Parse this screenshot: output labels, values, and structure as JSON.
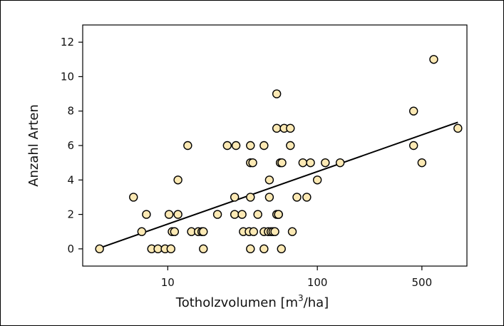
{
  "chart_data": {
    "type": "scatter",
    "title": "",
    "xlabel": "Totholzvolumen [m³/ha]",
    "xlabel_parts": {
      "prefix": "Totholzvolumen [m",
      "sup": "3",
      "suffix": "/ha]"
    },
    "ylabel": "Anzahl Arten",
    "xscale": "log",
    "xlim": [
      2.7,
      1000
    ],
    "ylim": [
      -1,
      13
    ],
    "xticks": [
      10,
      100,
      500
    ],
    "xtick_labels": [
      "10",
      "100",
      "500"
    ],
    "yticks": [
      0,
      2,
      4,
      6,
      8,
      10,
      12
    ],
    "ytick_labels": [
      "0",
      "2",
      "4",
      "6",
      "8",
      "10",
      "12"
    ],
    "grid": false,
    "legend": "none",
    "marker_fill": "#fce9b4",
    "marker_stroke": "#000000",
    "points": [
      {
        "x": 3.5,
        "y": 0
      },
      {
        "x": 5.9,
        "y": 3
      },
      {
        "x": 6.7,
        "y": 1
      },
      {
        "x": 7.2,
        "y": 2
      },
      {
        "x": 7.8,
        "y": 0
      },
      {
        "x": 8.6,
        "y": 0
      },
      {
        "x": 9.6,
        "y": 0
      },
      {
        "x": 10.2,
        "y": 2
      },
      {
        "x": 10.5,
        "y": 0
      },
      {
        "x": 10.7,
        "y": 1
      },
      {
        "x": 11.1,
        "y": 1
      },
      {
        "x": 11.7,
        "y": 2
      },
      {
        "x": 11.7,
        "y": 4
      },
      {
        "x": 13.6,
        "y": 6
      },
      {
        "x": 14.4,
        "y": 1
      },
      {
        "x": 16.0,
        "y": 1
      },
      {
        "x": 16.9,
        "y": 1
      },
      {
        "x": 17.3,
        "y": 0
      },
      {
        "x": 17.3,
        "y": 1
      },
      {
        "x": 21.5,
        "y": 2
      },
      {
        "x": 25.0,
        "y": 6
      },
      {
        "x": 28.0,
        "y": 2
      },
      {
        "x": 28.0,
        "y": 3
      },
      {
        "x": 28.6,
        "y": 6
      },
      {
        "x": 31.4,
        "y": 2
      },
      {
        "x": 32.0,
        "y": 1
      },
      {
        "x": 35.0,
        "y": 1
      },
      {
        "x": 35.7,
        "y": 6
      },
      {
        "x": 35.7,
        "y": 5
      },
      {
        "x": 35.7,
        "y": 3
      },
      {
        "x": 35.7,
        "y": 0
      },
      {
        "x": 37.0,
        "y": 5
      },
      {
        "x": 37.5,
        "y": 1
      },
      {
        "x": 40.0,
        "y": 2
      },
      {
        "x": 44.0,
        "y": 6
      },
      {
        "x": 44.0,
        "y": 1
      },
      {
        "x": 44.0,
        "y": 0
      },
      {
        "x": 47.0,
        "y": 1
      },
      {
        "x": 47.8,
        "y": 3
      },
      {
        "x": 47.8,
        "y": 4
      },
      {
        "x": 49.0,
        "y": 1
      },
      {
        "x": 50.5,
        "y": 1
      },
      {
        "x": 52.0,
        "y": 1
      },
      {
        "x": 53.5,
        "y": 2
      },
      {
        "x": 53.5,
        "y": 9
      },
      {
        "x": 53.5,
        "y": 7
      },
      {
        "x": 55.0,
        "y": 2
      },
      {
        "x": 55.0,
        "y": 2
      },
      {
        "x": 56.5,
        "y": 5
      },
      {
        "x": 57.5,
        "y": 0
      },
      {
        "x": 58.0,
        "y": 5
      },
      {
        "x": 60.0,
        "y": 7
      },
      {
        "x": 66.0,
        "y": 7
      },
      {
        "x": 66.0,
        "y": 6
      },
      {
        "x": 68.0,
        "y": 1
      },
      {
        "x": 73.0,
        "y": 3
      },
      {
        "x": 80.0,
        "y": 5
      },
      {
        "x": 85.0,
        "y": 3
      },
      {
        "x": 90.0,
        "y": 5
      },
      {
        "x": 100.0,
        "y": 4
      },
      {
        "x": 113.0,
        "y": 5
      },
      {
        "x": 142.0,
        "y": 5
      },
      {
        "x": 440.0,
        "y": 8
      },
      {
        "x": 440.0,
        "y": 6
      },
      {
        "x": 500.0,
        "y": 5
      },
      {
        "x": 600.0,
        "y": 11
      },
      {
        "x": 870.0,
        "y": 7
      }
    ],
    "trend_line": {
      "x": [
        3.5,
        870.0
      ],
      "y": [
        0.05,
        7.35
      ]
    }
  }
}
